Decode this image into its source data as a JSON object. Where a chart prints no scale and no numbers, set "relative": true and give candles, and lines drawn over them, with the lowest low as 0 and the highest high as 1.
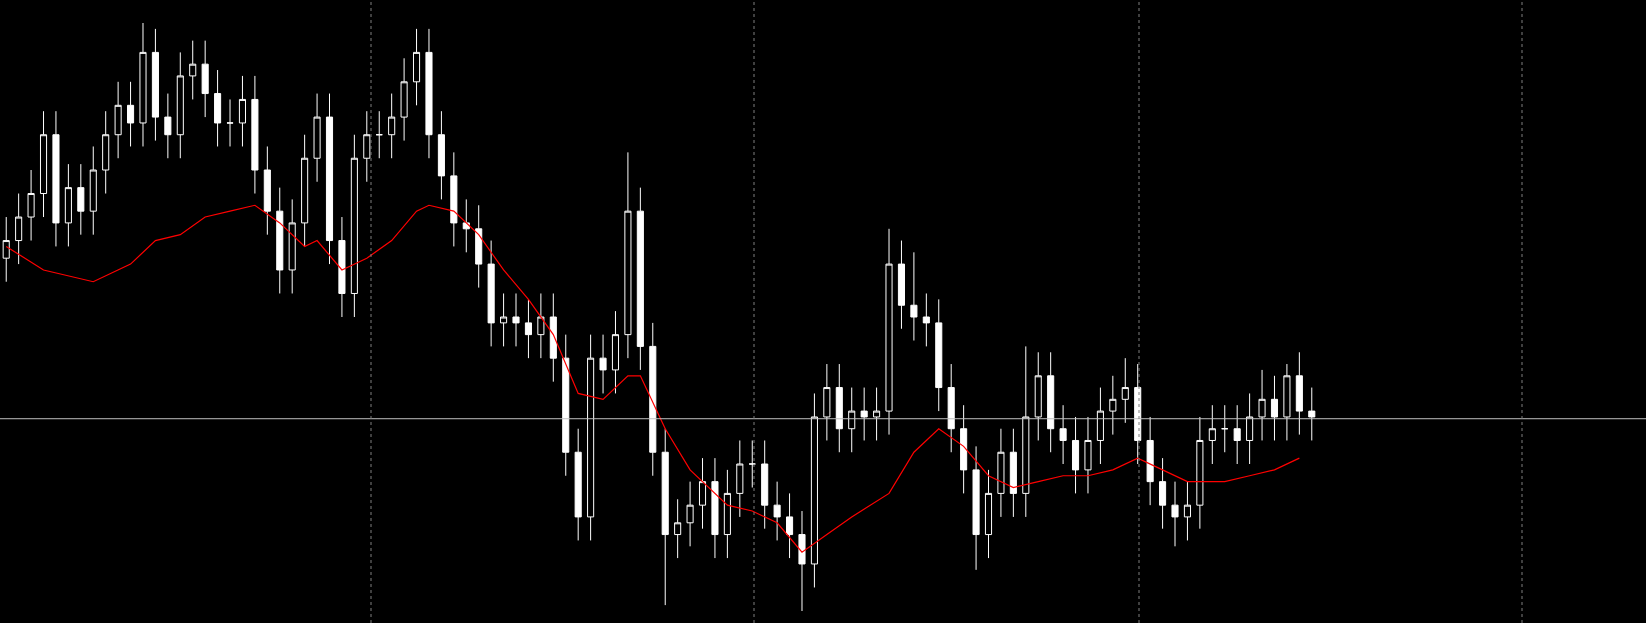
{
  "chart_data": {
    "type": "candlestick",
    "relative": true,
    "categories": [
      null,
      null,
      null,
      null,
      null,
      null,
      null,
      null,
      null,
      null,
      null,
      null,
      null,
      null,
      null,
      null,
      null,
      null,
      null,
      null,
      null,
      null,
      null,
      null,
      null,
      null,
      null,
      null,
      null,
      null,
      null,
      null,
      null,
      null,
      null,
      null,
      null,
      null,
      null,
      null,
      null,
      null,
      null,
      null,
      null,
      null,
      null,
      null,
      null,
      null,
      null,
      null,
      null,
      null,
      null,
      null,
      null,
      null,
      null,
      null,
      null,
      null,
      null,
      null,
      null,
      null,
      null,
      null,
      null,
      null,
      null,
      null,
      null,
      null,
      null,
      null,
      null,
      null,
      null,
      null,
      null,
      null,
      null,
      null,
      null,
      null,
      null,
      null,
      null,
      null,
      null,
      null,
      null,
      null,
      null,
      null,
      null,
      null,
      null,
      null,
      null,
      null,
      null,
      null,
      null,
      null
    ],
    "series": [
      {
        "type": "line",
        "color": "#ff0000",
        "values": [
          0.62,
          null,
          null,
          0.58,
          null,
          null,
          null,
          0.56,
          null,
          null,
          0.59,
          null,
          0.63,
          null,
          0.64,
          null,
          0.67,
          null,
          0.68,
          null,
          0.69,
          null,
          0.66,
          null,
          0.62,
          0.63,
          null,
          0.58,
          null,
          0.6,
          null,
          0.63,
          null,
          0.68,
          0.69,
          null,
          0.68,
          null,
          0.64,
          null,
          0.58,
          null,
          0.53,
          null,
          0.47,
          null,
          0.37,
          null,
          0.36,
          null,
          0.4,
          0.4,
          null,
          0.31,
          null,
          0.24,
          null,
          null,
          0.18,
          null,
          0.17,
          null,
          0.15,
          null,
          0.1,
          null,
          0.13,
          null,
          0.16,
          null,
          null,
          0.2,
          null,
          0.27,
          null,
          0.31,
          null,
          0.28,
          null,
          0.23,
          null,
          0.21,
          null,
          0.22,
          null,
          0.23,
          null,
          0.23,
          null,
          0.24,
          null,
          0.26,
          null,
          0.24,
          null,
          0.22,
          null,
          null,
          0.22,
          null,
          0.23,
          null,
          0.24,
          null,
          0.26,
          null
        ]
      },
      {
        "color": "#ffffff",
        "ohlc": [
          [
            0.6,
            0.67,
            0.56,
            0.63
          ],
          [
            0.63,
            0.71,
            0.59,
            0.67
          ],
          [
            0.67,
            0.75,
            0.63,
            0.71
          ],
          [
            0.71,
            0.85,
            0.67,
            0.81
          ],
          [
            0.81,
            0.85,
            0.62,
            0.66
          ],
          [
            0.66,
            0.76,
            0.62,
            0.72
          ],
          [
            0.72,
            0.76,
            0.64,
            0.68
          ],
          [
            0.68,
            0.79,
            0.64,
            0.75
          ],
          [
            0.75,
            0.85,
            0.71,
            0.81
          ],
          [
            0.81,
            0.9,
            0.77,
            0.86
          ],
          [
            0.86,
            0.9,
            0.79,
            0.83
          ],
          [
            0.83,
            1.0,
            0.79,
            0.95
          ],
          [
            0.95,
            0.99,
            0.8,
            0.84
          ],
          [
            0.84,
            0.88,
            0.77,
            0.81
          ],
          [
            0.81,
            0.95,
            0.77,
            0.91
          ],
          [
            0.91,
            0.97,
            0.87,
            0.93
          ],
          [
            0.93,
            0.97,
            0.84,
            0.88
          ],
          [
            0.88,
            0.92,
            0.79,
            0.83
          ],
          [
            0.83,
            0.87,
            0.79,
            0.83
          ],
          [
            0.83,
            0.91,
            0.79,
            0.87
          ],
          [
            0.87,
            0.91,
            0.71,
            0.75
          ],
          [
            0.75,
            0.79,
            0.64,
            0.68
          ],
          [
            0.68,
            0.72,
            0.54,
            0.58
          ],
          [
            0.58,
            0.7,
            0.54,
            0.66
          ],
          [
            0.66,
            0.81,
            0.62,
            0.77
          ],
          [
            0.77,
            0.88,
            0.73,
            0.84
          ],
          [
            0.84,
            0.88,
            0.59,
            0.63
          ],
          [
            0.63,
            0.67,
            0.5,
            0.54
          ],
          [
            0.54,
            0.81,
            0.5,
            0.77
          ],
          [
            0.77,
            0.85,
            0.73,
            0.81
          ],
          [
            0.81,
            0.85,
            0.77,
            0.81
          ],
          [
            0.81,
            0.88,
            0.77,
            0.84
          ],
          [
            0.84,
            0.94,
            0.8,
            0.9
          ],
          [
            0.9,
            0.99,
            0.86,
            0.95
          ],
          [
            0.95,
            0.99,
            0.77,
            0.81
          ],
          [
            0.81,
            0.85,
            0.7,
            0.74
          ],
          [
            0.74,
            0.78,
            0.62,
            0.66
          ],
          [
            0.66,
            0.7,
            0.61,
            0.65
          ],
          [
            0.65,
            0.69,
            0.55,
            0.59
          ],
          [
            0.59,
            0.63,
            0.45,
            0.49
          ],
          [
            0.49,
            0.54,
            0.45,
            0.5
          ],
          [
            0.5,
            0.54,
            0.45,
            0.49
          ],
          [
            0.49,
            0.53,
            0.43,
            0.47
          ],
          [
            0.47,
            0.54,
            0.43,
            0.5
          ],
          [
            0.5,
            0.54,
            0.39,
            0.43
          ],
          [
            0.43,
            0.47,
            0.23,
            0.27
          ],
          [
            0.27,
            0.31,
            0.12,
            0.16
          ],
          [
            0.16,
            0.47,
            0.12,
            0.43
          ],
          [
            0.43,
            0.47,
            0.37,
            0.41
          ],
          [
            0.41,
            0.51,
            0.37,
            0.47
          ],
          [
            0.47,
            0.78,
            0.43,
            0.68
          ],
          [
            0.68,
            0.72,
            0.41,
            0.45
          ],
          [
            0.45,
            0.49,
            0.23,
            0.27
          ],
          [
            0.27,
            0.31,
            0.01,
            0.13
          ],
          [
            0.13,
            0.19,
            0.09,
            0.15
          ],
          [
            0.15,
            0.22,
            0.11,
            0.18
          ],
          [
            0.18,
            0.26,
            0.14,
            0.22
          ],
          [
            0.22,
            0.26,
            0.09,
            0.13
          ],
          [
            0.13,
            0.24,
            0.09,
            0.2
          ],
          [
            0.2,
            0.29,
            0.16,
            0.25
          ],
          [
            0.25,
            0.29,
            0.21,
            0.25
          ],
          [
            0.25,
            0.29,
            0.14,
            0.18
          ],
          [
            0.18,
            0.22,
            0.12,
            0.16
          ],
          [
            0.16,
            0.2,
            0.09,
            0.13
          ],
          [
            0.13,
            0.17,
            0.0,
            0.08
          ],
          [
            0.08,
            0.37,
            0.04,
            0.33
          ],
          [
            0.33,
            0.42,
            0.29,
            0.38
          ],
          [
            0.38,
            0.42,
            0.27,
            0.31
          ],
          [
            0.31,
            0.38,
            0.27,
            0.34
          ],
          [
            0.34,
            0.38,
            0.29,
            0.33
          ],
          [
            0.33,
            0.38,
            0.29,
            0.34
          ],
          [
            0.34,
            0.65,
            0.3,
            0.59
          ],
          [
            0.59,
            0.63,
            0.48,
            0.52
          ],
          [
            0.52,
            0.61,
            0.46,
            0.5
          ],
          [
            0.5,
            0.54,
            0.45,
            0.49
          ],
          [
            0.49,
            0.53,
            0.34,
            0.38
          ],
          [
            0.38,
            0.42,
            0.27,
            0.31
          ],
          [
            0.31,
            0.35,
            0.2,
            0.24
          ],
          [
            0.24,
            0.28,
            0.07,
            0.13
          ],
          [
            0.13,
            0.24,
            0.09,
            0.2
          ],
          [
            0.2,
            0.31,
            0.16,
            0.27
          ],
          [
            0.27,
            0.31,
            0.16,
            0.2
          ],
          [
            0.2,
            0.45,
            0.16,
            0.33
          ],
          [
            0.33,
            0.44,
            0.29,
            0.4
          ],
          [
            0.4,
            0.44,
            0.27,
            0.31
          ],
          [
            0.31,
            0.35,
            0.25,
            0.29
          ],
          [
            0.29,
            0.33,
            0.2,
            0.24
          ],
          [
            0.24,
            0.33,
            0.2,
            0.29
          ],
          [
            0.29,
            0.38,
            0.25,
            0.34
          ],
          [
            0.34,
            0.4,
            0.3,
            0.36
          ],
          [
            0.36,
            0.43,
            0.32,
            0.38
          ],
          [
            0.38,
            0.42,
            0.25,
            0.29
          ],
          [
            0.29,
            0.33,
            0.18,
            0.22
          ],
          [
            0.22,
            0.26,
            0.14,
            0.18
          ],
          [
            0.18,
            0.22,
            0.11,
            0.16
          ],
          [
            0.16,
            0.22,
            0.12,
            0.18
          ],
          [
            0.18,
            0.33,
            0.14,
            0.29
          ],
          [
            0.29,
            0.35,
            0.25,
            0.31
          ],
          [
            0.31,
            0.35,
            0.27,
            0.31
          ],
          [
            0.31,
            0.35,
            0.25,
            0.29
          ],
          [
            0.29,
            0.37,
            0.25,
            0.33
          ],
          [
            0.33,
            0.41,
            0.29,
            0.36
          ],
          [
            0.36,
            0.4,
            0.29,
            0.33
          ],
          [
            0.33,
            0.42,
            0.29,
            0.4
          ],
          [
            0.4,
            0.44,
            0.3,
            0.34
          ],
          [
            0.34,
            0.38,
            0.29,
            0.33
          ]
        ]
      }
    ],
    "ref_lines": [
      {
        "axis": "y",
        "value": 0.327,
        "color": "#c0c0c0"
      }
    ]
  }
}
